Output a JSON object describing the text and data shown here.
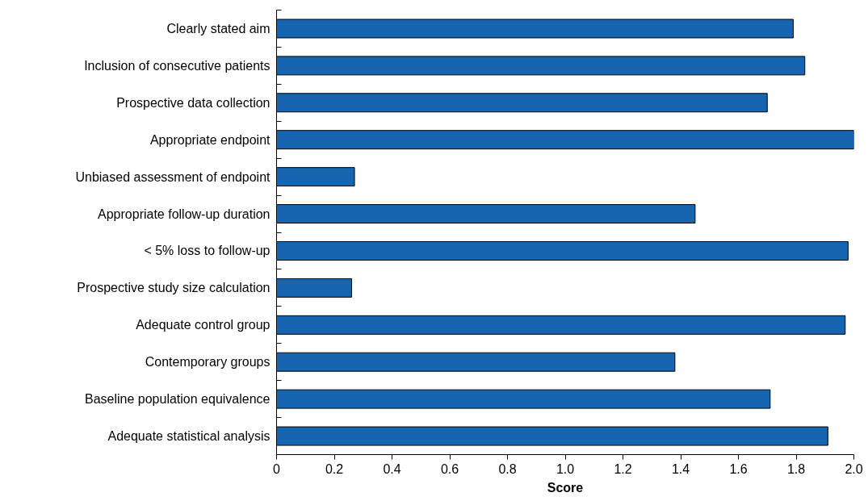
{
  "chart_data": {
    "type": "bar",
    "orientation": "horizontal",
    "xlabel": "Score",
    "categories": [
      "Clearly stated aim",
      "Inclusion of consecutive patients",
      "Prospective data collection",
      "Appropriate endpoint",
      "Unbiased assessment of endpoint",
      "Appropriate follow-up duration",
      "< 5% loss to follow-up",
      "Prospective study size calculation",
      "Adequate control group",
      "Contemporary groups",
      "Baseline population equivalence",
      "Adequate statistical analysis"
    ],
    "values": [
      1.79,
      1.83,
      1.7,
      2.0,
      0.27,
      1.45,
      1.98,
      0.26,
      1.97,
      1.38,
      1.71,
      1.91
    ],
    "color": "#1565b0",
    "xlim": [
      0,
      2.0
    ],
    "xticks": [
      0,
      0.2,
      0.4,
      0.6,
      0.8,
      {
        "value": 1.0,
        "label": "1.0"
      },
      1.2,
      1.4,
      1.6,
      1.8,
      {
        "value": 2.0,
        "label": "2.0"
      }
    ],
    "grid": false
  }
}
